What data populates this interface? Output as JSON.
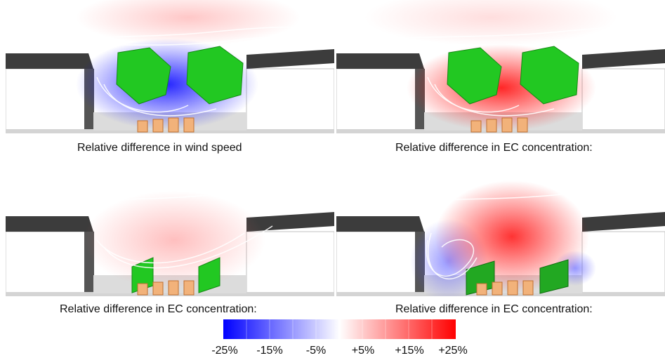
{
  "panels": [
    {
      "caption": "Relative difference in wind speed",
      "tint": "blue",
      "trees": "large"
    },
    {
      "caption": "Relative difference in EC concentration:",
      "tint": "red",
      "trees": "large"
    },
    {
      "caption": "Relative difference in EC concentration:",
      "tint": "faint",
      "trees": "hedge"
    },
    {
      "caption": "Relative difference in EC concentration:",
      "tint": "mixed",
      "trees": "barrier"
    }
  ],
  "colorbar": {
    "ticks": [
      "-25%",
      "-15%",
      "-5%",
      "+5%",
      "+15%",
      "+25%"
    ],
    "colors": {
      "negative": "#0000ff",
      "neutral": "#ffffff",
      "positive": "#ff0000"
    }
  },
  "colors": {
    "building": "#3c3c3c",
    "ground": "#d4d4d4",
    "vegetation": "#22c822",
    "source": "#f2b27a"
  }
}
